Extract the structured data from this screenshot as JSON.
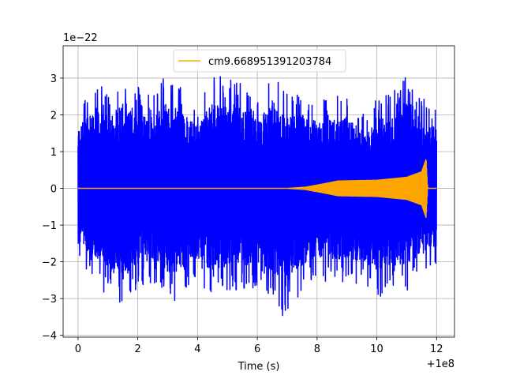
{
  "chart_data": {
    "type": "line",
    "xlabel": "Time (s)",
    "ylabel": "",
    "x_offset_label": "+1e8",
    "y_scale_label": "1e−22",
    "xlim": [
      -0.5,
      12.6
    ],
    "ylim": [
      -4.05,
      3.88
    ],
    "x_ticks": [
      0,
      2,
      4,
      6,
      8,
      10,
      12
    ],
    "x_tick_labels": [
      "0",
      "2",
      "4",
      "6",
      "8",
      "10",
      "12"
    ],
    "y_ticks": [
      -4,
      -3,
      -2,
      -1,
      0,
      1,
      2,
      3
    ],
    "y_tick_labels": [
      "−4",
      "−3",
      "−2",
      "−1",
      "0",
      "1",
      "2",
      "3"
    ],
    "grid": true,
    "legend_position": "top-center",
    "series": [
      {
        "color": "#0000ff",
        "kind": "noise",
        "x_range": [
          0,
          12
        ],
        "envelope_peaks": [
          {
            "x": 0.0,
            "y": 2.2
          },
          {
            "x": 0.5,
            "y": 3.0
          },
          {
            "x": 1.0,
            "y": 2.6
          },
          {
            "x": 1.5,
            "y": 3.2
          },
          {
            "x": 2.0,
            "y": 2.8
          },
          {
            "x": 2.5,
            "y": 2.6
          },
          {
            "x": 3.0,
            "y": 3.2
          },
          {
            "x": 3.5,
            "y": 2.7
          },
          {
            "x": 4.0,
            "y": 2.4
          },
          {
            "x": 4.5,
            "y": 3.1
          },
          {
            "x": 5.0,
            "y": 3.0
          },
          {
            "x": 5.5,
            "y": 3.1
          },
          {
            "x": 6.0,
            "y": 2.4
          },
          {
            "x": 6.5,
            "y": 3.2
          },
          {
            "x": 7.0,
            "y": 2.6
          },
          {
            "x": 7.5,
            "y": 2.7
          },
          {
            "x": 8.0,
            "y": 2.4
          },
          {
            "x": 8.5,
            "y": 2.5
          },
          {
            "x": 9.0,
            "y": 2.6
          },
          {
            "x": 9.5,
            "y": 2.1
          },
          {
            "x": 10.0,
            "y": 2.6
          },
          {
            "x": 10.5,
            "y": 2.6
          },
          {
            "x": 11.0,
            "y": 3.3
          },
          {
            "x": 11.5,
            "y": 2.5
          },
          {
            "x": 12.0,
            "y": 2.3
          }
        ],
        "envelope_troughs": [
          {
            "x": 0.0,
            "y": -2.0
          },
          {
            "x": 0.5,
            "y": -2.4
          },
          {
            "x": 1.0,
            "y": -3.0
          },
          {
            "x": 1.5,
            "y": -3.3
          },
          {
            "x": 2.0,
            "y": -2.8
          },
          {
            "x": 2.5,
            "y": -2.6
          },
          {
            "x": 3.0,
            "y": -3.2
          },
          {
            "x": 3.5,
            "y": -3.0
          },
          {
            "x": 4.0,
            "y": -2.6
          },
          {
            "x": 4.5,
            "y": -3.0
          },
          {
            "x": 5.0,
            "y": -2.9
          },
          {
            "x": 5.5,
            "y": -2.8
          },
          {
            "x": 6.0,
            "y": -2.7
          },
          {
            "x": 6.5,
            "y": -3.0
          },
          {
            "x": 6.9,
            "y": -3.65
          },
          {
            "x": 7.5,
            "y": -2.8
          },
          {
            "x": 8.0,
            "y": -2.5
          },
          {
            "x": 8.5,
            "y": -2.6
          },
          {
            "x": 9.0,
            "y": -2.6
          },
          {
            "x": 9.5,
            "y": -2.6
          },
          {
            "x": 10.0,
            "y": -3.0
          },
          {
            "x": 10.5,
            "y": -2.8
          },
          {
            "x": 11.0,
            "y": -2.8
          },
          {
            "x": 11.5,
            "y": -2.4
          },
          {
            "x": 12.0,
            "y": -2.2
          }
        ]
      },
      {
        "name": "cm9.668951391203784",
        "color": "#ffa500",
        "kind": "chirp",
        "amplitude_envelope": [
          {
            "x": 0.0,
            "y": 0.0
          },
          {
            "x": 7.0,
            "y": 0.0
          },
          {
            "x": 7.6,
            "y": 0.03
          },
          {
            "x": 8.2,
            "y": 0.12
          },
          {
            "x": 8.7,
            "y": 0.2
          },
          {
            "x": 10.0,
            "y": 0.22
          },
          {
            "x": 11.0,
            "y": 0.3
          },
          {
            "x": 11.5,
            "y": 0.45
          },
          {
            "x": 11.65,
            "y": 0.8
          },
          {
            "x": 11.7,
            "y": 0.0
          },
          {
            "x": 12.0,
            "y": 0.0
          }
        ]
      }
    ]
  }
}
